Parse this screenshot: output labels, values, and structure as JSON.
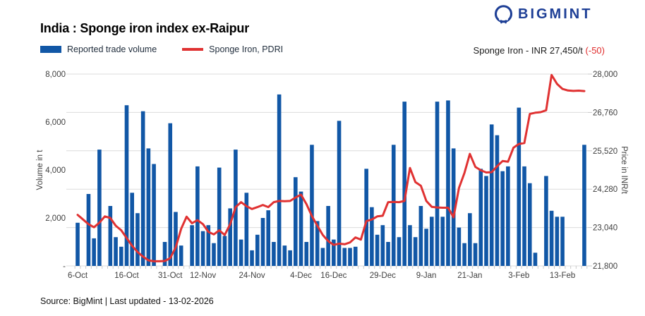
{
  "header": {
    "title": "India : Sponge iron index ex-Raipur",
    "brand": "BIGMINT",
    "price_text": "Sponge Iron - INR 27,450/t",
    "price_change": "(-50)"
  },
  "legend": {
    "volume_label": "Reported trade volume",
    "price_label": "Sponge Iron, PDRI"
  },
  "footer": {
    "source_text": "Source: BigMint | Last updated - 13-02-2026"
  },
  "chart_data": {
    "type": "bar+line",
    "title": "India : Sponge iron index ex-Raipur",
    "x_tick_labels": [
      "6-Oct",
      "16-Oct",
      "31-Oct",
      "12-Nov",
      "24-Nov",
      "4-Dec",
      "16-Dec",
      "29-Dec",
      "9-Jan",
      "21-Jan",
      "3-Feb",
      "13-Feb"
    ],
    "x_tick_indices": [
      0,
      9,
      17,
      23,
      32,
      41,
      47,
      56,
      64,
      72,
      81,
      89
    ],
    "bars": {
      "name": "Reported trade volume",
      "unit": "t",
      "color": "#1157a6",
      "values": [
        1800,
        null,
        3000,
        1150,
        4850,
        null,
        2500,
        1200,
        800,
        6700,
        3050,
        2200,
        6450,
        4900,
        4250,
        null,
        1000,
        5950,
        2250,
        850,
        null,
        1700,
        4150,
        1450,
        1700,
        950,
        4100,
        1250,
        2400,
        4850,
        1100,
        3050,
        650,
        1300,
        2000,
        2320,
        1000,
        7150,
        850,
        650,
        3700,
        3100,
        1000,
        5050,
        1870,
        750,
        2500,
        1100,
        6050,
        750,
        750,
        800,
        null,
        4050,
        2450,
        1300,
        1700,
        1000,
        5050,
        1200,
        6850,
        1700,
        1200,
        2500,
        1550,
        2050,
        6850,
        2050,
        6900,
        4900,
        1600,
        950,
        2200,
        950,
        4050,
        3750,
        5900,
        5450,
        3950,
        4150,
        null,
        6600,
        4150,
        3450,
        550,
        null,
        3750,
        2300,
        2050,
        2050,
        null,
        null,
        null,
        5050
      ]
    },
    "line": {
      "name": "Sponge Iron, PDRI",
      "unit": "INR/t",
      "color": "#e03232",
      "values": [
        23450,
        23300,
        23150,
        23050,
        23200,
        23400,
        23350,
        23100,
        22950,
        22700,
        22450,
        22250,
        22100,
        21980,
        21950,
        21950,
        21960,
        22050,
        22400,
        23000,
        23390,
        23180,
        23280,
        23150,
        22900,
        22820,
        22950,
        22800,
        23150,
        23700,
        23860,
        23730,
        23640,
        23700,
        23770,
        23700,
        23860,
        23900,
        23890,
        23900,
        24010,
        24105,
        23800,
        23410,
        23100,
        22800,
        22600,
        22480,
        22520,
        22500,
        22560,
        22720,
        22650,
        23250,
        23300,
        23400,
        23420,
        23860,
        23870,
        23860,
        23900,
        24965,
        24510,
        24390,
        23900,
        23710,
        23690,
        23680,
        23680,
        23370,
        24320,
        24800,
        25420,
        25000,
        24890,
        24820,
        24830,
        25020,
        25190,
        25170,
        25620,
        25740,
        25770,
        26710,
        26750,
        26770,
        26830,
        27970,
        27680,
        27520,
        27470,
        27455,
        27465,
        27450
      ]
    },
    "left_axis": {
      "title": "Volume in t",
      "min": 0,
      "max": 8000,
      "ticks": [
        {
          "label": "8,000",
          "value": 8000
        },
        {
          "label": "6,000",
          "value": 6000
        },
        {
          "label": "4,000",
          "value": 4000
        },
        {
          "label": "2,000",
          "value": 2000
        },
        {
          "label": "-",
          "value": 0
        }
      ]
    },
    "right_axis": {
      "title": "Price in INR/t",
      "min": 21800,
      "max": 28000,
      "ticks": [
        {
          "label": "28,000",
          "value": 28000
        },
        {
          "label": "26,760",
          "value": 26760
        },
        {
          "label": "25,520",
          "value": 25520
        },
        {
          "label": "24,280",
          "value": 24280
        },
        {
          "label": "23,040",
          "value": 23040
        },
        {
          "label": "21,800",
          "value": 21800
        }
      ]
    },
    "grid": true,
    "grid_color": "#dcdcdc",
    "tick_color": "#c9c9c9",
    "axis_text_color": "#3f3f3f",
    "legend_position": "top-left"
  }
}
